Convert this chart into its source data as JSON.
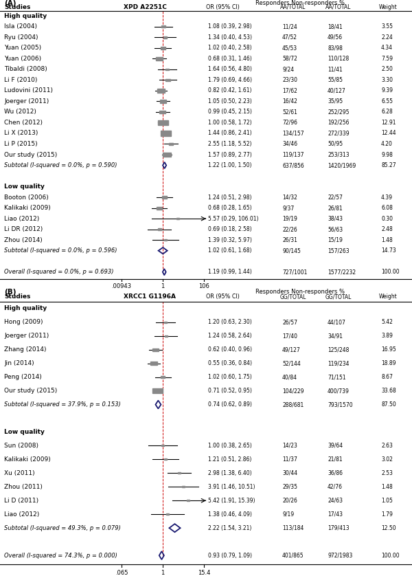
{
  "panel_A": {
    "title": "(A)",
    "gene": "XPD A2251C",
    "col_header": "Responders Non-responders %",
    "responder_col": "AA/TOTAL",
    "nonresponder_col": "AA/TOTAL",
    "high_quality_label": "High quality",
    "low_quality_label": "Low quality",
    "studies_hq": [
      {
        "name": "Isla (2004)",
        "or": 1.08,
        "lo": 0.39,
        "hi": 2.98,
        "resp": "11/24",
        "nonresp": "18/41",
        "weight": "3.55",
        "or_str": "1.08 (0.39, 2.98)"
      },
      {
        "name": "Ryu (2004)",
        "or": 1.34,
        "lo": 0.4,
        "hi": 4.53,
        "resp": "47/52",
        "nonresp": "49/56",
        "weight": "2.24",
        "or_str": "1.34 (0.40, 4.53)"
      },
      {
        "name": "Yuan (2005)",
        "or": 1.02,
        "lo": 0.4,
        "hi": 2.58,
        "resp": "45/53",
        "nonresp": "83/98",
        "weight": "4.34",
        "or_str": "1.02 (0.40, 2.58)"
      },
      {
        "name": "Yuan (2006)",
        "or": 0.68,
        "lo": 0.31,
        "hi": 1.46,
        "resp": "58/72",
        "nonresp": "110/128",
        "weight": "7.59",
        "or_str": "0.68 (0.31, 1.46)"
      },
      {
        "name": "Tibaldi (2008)",
        "or": 1.64,
        "lo": 0.56,
        "hi": 4.8,
        "resp": "9/24",
        "nonresp": "11/41",
        "weight": "2.50",
        "or_str": "1.64 (0.56, 4.80)"
      },
      {
        "name": "Li F (2010)",
        "or": 1.79,
        "lo": 0.69,
        "hi": 4.66,
        "resp": "23/30",
        "nonresp": "55/85",
        "weight": "3.30",
        "or_str": "1.79 (0.69, 4.66)"
      },
      {
        "name": "Ludovini (2011)",
        "or": 0.82,
        "lo": 0.42,
        "hi": 1.61,
        "resp": "17/62",
        "nonresp": "40/127",
        "weight": "9.39",
        "or_str": "0.82 (0.42, 1.61)"
      },
      {
        "name": "Joerger (2011)",
        "or": 1.05,
        "lo": 0.5,
        "hi": 2.23,
        "resp": "16/42",
        "nonresp": "35/95",
        "weight": "6.55",
        "or_str": "1.05 (0.50, 2.23)"
      },
      {
        "name": "Wu (2012)",
        "or": 0.99,
        "lo": 0.45,
        "hi": 2.15,
        "resp": "52/61",
        "nonresp": "252/295",
        "weight": "6.28",
        "or_str": "0.99 (0.45, 2.15)"
      },
      {
        "name": "Chen (2012)",
        "or": 1.0,
        "lo": 0.58,
        "hi": 1.72,
        "resp": "72/96",
        "nonresp": "192/256",
        "weight": "12.91",
        "or_str": "1.00 (0.58, 1.72)"
      },
      {
        "name": "Li X (2013)",
        "or": 1.44,
        "lo": 0.86,
        "hi": 2.41,
        "resp": "134/157",
        "nonresp": "272/339",
        "weight": "12.44",
        "or_str": "1.44 (0.86, 2.41)"
      },
      {
        "name": "Li P (2015)",
        "or": 2.55,
        "lo": 1.18,
        "hi": 5.52,
        "resp": "34/46",
        "nonresp": "50/95",
        "weight": "4.20",
        "or_str": "2.55 (1.18, 5.52)"
      },
      {
        "name": "Our study (2015)",
        "or": 1.57,
        "lo": 0.89,
        "hi": 2.77,
        "resp": "119/137",
        "nonresp": "253/313",
        "weight": "9.98",
        "or_str": "1.57 (0.89, 2.77)"
      }
    ],
    "subtotal_hq": {
      "or": 1.22,
      "lo": 1.0,
      "hi": 1.5,
      "resp": "637/856",
      "nonresp": "1420/1969",
      "weight": "85.27",
      "label": "Subtotal (I-squared = 0.0%, p = 0.590)",
      "or_str": "1.22 (1.00, 1.50)"
    },
    "studies_lq": [
      {
        "name": "Booton (2006)",
        "or": 1.24,
        "lo": 0.51,
        "hi": 2.98,
        "resp": "14/32",
        "nonresp": "22/57",
        "weight": "4.39",
        "or_str": "1.24 (0.51, 2.98)"
      },
      {
        "name": "Kalikaki (2009)",
        "or": 0.68,
        "lo": 0.28,
        "hi": 1.65,
        "resp": "9/37",
        "nonresp": "26/81",
        "weight": "6.08",
        "or_str": "0.68 (0.28, 1.65)"
      },
      {
        "name": "Liao (2012)",
        "or": 5.57,
        "lo": 0.29,
        "hi": 106.01,
        "resp": "19/19",
        "nonresp": "38/43",
        "weight": "0.30",
        "or_str": "5.57 (0.29, 106.01)",
        "arrow": true
      },
      {
        "name": "Li DR (2012)",
        "or": 0.69,
        "lo": 0.18,
        "hi": 2.58,
        "resp": "22/26",
        "nonresp": "56/63",
        "weight": "2.48",
        "or_str": "0.69 (0.18, 2.58)"
      },
      {
        "name": "Zhou (2014)",
        "or": 1.39,
        "lo": 0.32,
        "hi": 5.97,
        "resp": "26/31",
        "nonresp": "15/19",
        "weight": "1.48",
        "or_str": "1.39 (0.32, 5.97)"
      }
    ],
    "subtotal_lq": {
      "or": 1.02,
      "lo": 0.61,
      "hi": 1.68,
      "resp": "90/145",
      "nonresp": "157/263",
      "weight": "14.73",
      "label": "Subtotal (I-squared = 0.0%, p = 0.596)",
      "or_str": "1.02 (0.61, 1.68)"
    },
    "overall": {
      "or": 1.19,
      "lo": 0.99,
      "hi": 1.44,
      "resp": "727/1001",
      "nonresp": "1577/2232",
      "weight": "100.00",
      "label": "Overall (I-squared = 0.0%, p = 0.693)",
      "or_str": "1.19 (0.99, 1.44)"
    },
    "xmin": 0.00943,
    "xmax": 106,
    "xtick_labels": [
      ".00943",
      "1",
      "106"
    ],
    "xtick_vals": [
      0.00943,
      1,
      106
    ],
    "max_weight": 12.91
  },
  "panel_B": {
    "title": "(B)",
    "gene": "XRCC1 G1196A",
    "col_header": "Responders Non-responders %",
    "responder_col": "GG/TOTAL",
    "nonresponder_col": "GG/TOTAL",
    "high_quality_label": "High quality",
    "low_quality_label": "Low quality",
    "studies_hq": [
      {
        "name": "Hong (2009)",
        "or": 1.2,
        "lo": 0.63,
        "hi": 2.3,
        "resp": "26/57",
        "nonresp": "44/107",
        "weight": "5.42",
        "or_str": "1.20 (0.63, 2.30)"
      },
      {
        "name": "Joerger (2011)",
        "or": 1.24,
        "lo": 0.58,
        "hi": 2.64,
        "resp": "17/40",
        "nonresp": "34/91",
        "weight": "3.89",
        "or_str": "1.24 (0.58, 2.64)"
      },
      {
        "name": "Zhang (2014)",
        "or": 0.62,
        "lo": 0.4,
        "hi": 0.96,
        "resp": "49/127",
        "nonresp": "125/248",
        "weight": "16.95",
        "or_str": "0.62 (0.40, 0.96)"
      },
      {
        "name": "Jin (2014)",
        "or": 0.55,
        "lo": 0.36,
        "hi": 0.84,
        "resp": "52/144",
        "nonresp": "119/234",
        "weight": "18.89",
        "or_str": "0.55 (0.36, 0.84)"
      },
      {
        "name": "Peng (2014)",
        "or": 1.02,
        "lo": 0.6,
        "hi": 1.75,
        "resp": "40/84",
        "nonresp": "71/151",
        "weight": "8.67",
        "or_str": "1.02 (0.60, 1.75)"
      },
      {
        "name": "Our study (2015)",
        "or": 0.71,
        "lo": 0.52,
        "hi": 0.95,
        "resp": "104/229",
        "nonresp": "400/739",
        "weight": "33.68",
        "or_str": "0.71 (0.52, 0.95)"
      }
    ],
    "subtotal_hq": {
      "or": 0.74,
      "lo": 0.62,
      "hi": 0.89,
      "resp": "288/681",
      "nonresp": "793/1570",
      "weight": "87.50",
      "label": "Subtotal (I-squared = 37.9%, p = 0.153)",
      "or_str": "0.74 (0.62, 0.89)"
    },
    "studies_lq": [
      {
        "name": "Sun (2008)",
        "or": 1.0,
        "lo": 0.38,
        "hi": 2.65,
        "resp": "14/23",
        "nonresp": "39/64",
        "weight": "2.63",
        "or_str": "1.00 (0.38, 2.65)"
      },
      {
        "name": "Kalikaki (2009)",
        "or": 1.21,
        "lo": 0.51,
        "hi": 2.86,
        "resp": "11/37",
        "nonresp": "21/81",
        "weight": "3.02",
        "or_str": "1.21 (0.51, 2.86)"
      },
      {
        "name": "Xu (2011)",
        "or": 2.98,
        "lo": 1.38,
        "hi": 6.4,
        "resp": "30/44",
        "nonresp": "36/86",
        "weight": "2.53",
        "or_str": "2.98 (1.38, 6.40)"
      },
      {
        "name": "Zhou (2011)",
        "or": 3.91,
        "lo": 1.46,
        "hi": 10.51,
        "resp": "29/35",
        "nonresp": "42/76",
        "weight": "1.48",
        "or_str": "3.91 (1.46, 10.51)"
      },
      {
        "name": "Li D (2011)",
        "or": 5.42,
        "lo": 1.91,
        "hi": 15.39,
        "resp": "20/26",
        "nonresp": "24/63",
        "weight": "1.05",
        "or_str": "5.42 (1.91, 15.39)",
        "arrow": true
      },
      {
        "name": "Liao (2012)",
        "or": 1.38,
        "lo": 0.46,
        "hi": 4.09,
        "resp": "9/19",
        "nonresp": "17/43",
        "weight": "1.79",
        "or_str": "1.38 (0.46, 4.09)"
      }
    ],
    "subtotal_lq": {
      "or": 2.22,
      "lo": 1.54,
      "hi": 3.21,
      "resp": "113/184",
      "nonresp": "179/413",
      "weight": "12.50",
      "label": "Subtotal (I-squared = 49.3%, p = 0.079)",
      "or_str": "2.22 (1.54, 3.21)"
    },
    "overall": {
      "or": 0.93,
      "lo": 0.79,
      "hi": 1.09,
      "resp": "401/865",
      "nonresp": "972/1983",
      "weight": "100.00",
      "label": "Overall (I-squared = 74.3%, p = 0.000)",
      "or_str": "0.93 (0.79, 1.09)"
    },
    "xmin": 0.065,
    "xmax": 15.4,
    "xtick_labels": [
      ".065",
      "1",
      "15.4"
    ],
    "xtick_vals": [
      0.065,
      1,
      15.4
    ],
    "max_weight": 33.68
  }
}
